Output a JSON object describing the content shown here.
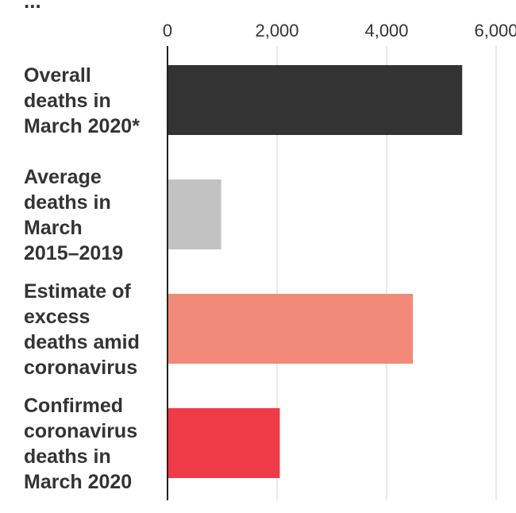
{
  "chart_data": {
    "type": "bar",
    "orientation": "horizontal",
    "title": "...",
    "xlim": [
      0,
      6000
    ],
    "x_ticks": [
      "0",
      "2,000",
      "4,000",
      "6,000"
    ],
    "x_tick_values": [
      0,
      2000,
      4000,
      6000
    ],
    "grid": true,
    "categories": [
      [
        "Overall",
        "deaths in",
        "March 2020*"
      ],
      [
        "Average",
        "deaths in",
        "March",
        "2015–2019"
      ],
      [
        "Estimate of",
        "excess",
        "deaths amid",
        "coronavirus"
      ],
      [
        "Confirmed",
        "coronavirus",
        "deaths in",
        "March 2020"
      ]
    ],
    "values": [
      5380,
      980,
      4480,
      2050
    ],
    "colors": [
      "#333333",
      "#c2c2c2",
      "#f28a79",
      "#ef3a47"
    ]
  }
}
